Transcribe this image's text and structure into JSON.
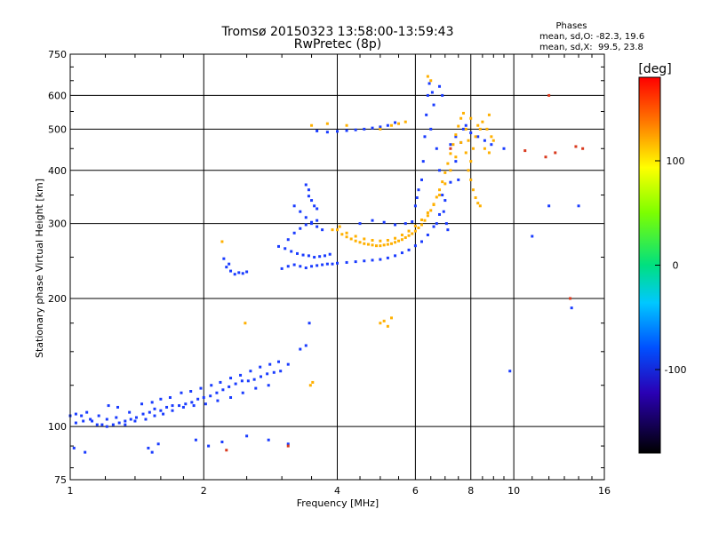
{
  "chart_data": {
    "type": "scatter",
    "title": "Tromsø 20150323 13:58:00-13:59:43",
    "subtitle": "RwPretec (8p)",
    "xlabel": "Frequency [MHz]",
    "ylabel": "Stationary phase Virtual Height [km]",
    "x_scale": "log",
    "y_scale": "log",
    "xlim": [
      1,
      16
    ],
    "ylim": [
      75,
      750
    ],
    "x_ticks": [
      1,
      2,
      4,
      6,
      8,
      10,
      16
    ],
    "y_ticks": [
      75,
      100,
      200,
      300,
      400,
      500,
      600,
      750
    ],
    "grid": true,
    "phase_stats": {
      "heading": "Phases",
      "line1": "mean, sd,O: -82.3, 19.6",
      "line2": "mean, sd,X:  99.5, 23.8"
    },
    "colorbar": {
      "label": "[deg]",
      "ticks": [
        100,
        0,
        -100
      ],
      "range": [
        -180,
        180
      ]
    },
    "series": [
      {
        "points": [
          [
            1.0,
            106
          ],
          [
            1.03,
            107
          ],
          [
            1.06,
            106
          ],
          [
            1.09,
            108
          ],
          [
            1.12,
            103
          ],
          [
            1.15,
            101
          ],
          [
            1.18,
            101
          ],
          [
            1.21,
            100
          ],
          [
            1.25,
            101
          ],
          [
            1.29,
            102
          ],
          [
            1.33,
            103
          ],
          [
            1.37,
            104
          ],
          [
            1.41,
            105
          ],
          [
            1.46,
            107
          ],
          [
            1.51,
            108
          ],
          [
            1.55,
            110
          ],
          [
            1.6,
            109
          ],
          [
            1.65,
            111
          ],
          [
            1.7,
            112
          ],
          [
            1.76,
            112
          ],
          [
            1.82,
            113
          ],
          [
            1.88,
            114
          ],
          [
            1.94,
            116
          ],
          [
            2.0,
            117
          ],
          [
            2.07,
            118
          ],
          [
            2.14,
            120
          ],
          [
            2.21,
            122
          ],
          [
            2.28,
            124
          ],
          [
            2.36,
            126
          ],
          [
            2.44,
            128
          ],
          [
            2.52,
            128
          ],
          [
            2.6,
            129
          ],
          [
            2.69,
            131
          ],
          [
            2.78,
            133
          ],
          [
            2.88,
            134
          ],
          [
            2.98,
            135
          ],
          [
            3.1,
            140
          ],
          [
            3.3,
            152
          ],
          [
            3.4,
            155
          ],
          [
            3.46,
            175
          ],
          [
            1.55,
            106
          ],
          [
            1.62,
            107
          ],
          [
            1.7,
            109
          ],
          [
            1.8,
            111
          ],
          [
            1.9,
            112
          ],
          [
            2.02,
            113
          ],
          [
            2.15,
            115
          ],
          [
            2.3,
            117
          ],
          [
            2.45,
            120
          ],
          [
            2.62,
            123
          ],
          [
            2.8,
            125
          ],
          [
            1.03,
            102
          ],
          [
            1.07,
            103
          ],
          [
            1.11,
            104
          ],
          [
            1.16,
            106
          ],
          [
            1.21,
            104
          ],
          [
            1.27,
            105
          ],
          [
            1.33,
            101
          ],
          [
            1.4,
            103
          ],
          [
            1.48,
            104
          ],
          [
            1.22,
            112
          ],
          [
            1.28,
            111
          ],
          [
            1.36,
            108
          ],
          [
            1.45,
            113
          ],
          [
            1.53,
            114
          ],
          [
            1.6,
            116
          ],
          [
            1.68,
            117
          ],
          [
            1.78,
            120
          ],
          [
            1.87,
            121
          ],
          [
            1.97,
            123
          ],
          [
            2.08,
            125
          ],
          [
            2.18,
            127
          ],
          [
            2.3,
            130
          ],
          [
            2.42,
            132
          ],
          [
            2.55,
            135
          ],
          [
            2.68,
            138
          ],
          [
            2.82,
            140
          ],
          [
            2.95,
            142
          ],
          [
            1.02,
            89
          ],
          [
            1.08,
            87
          ],
          [
            1.5,
            89
          ],
          [
            1.53,
            87
          ],
          [
            1.58,
            91
          ],
          [
            1.92,
            93
          ],
          [
            2.05,
            90
          ],
          [
            2.2,
            92
          ],
          [
            2.5,
            95
          ],
          [
            2.8,
            93
          ],
          [
            3.1,
            91
          ],
          [
            2.35,
            228
          ],
          [
            2.3,
            232
          ],
          [
            2.4,
            230
          ],
          [
            2.45,
            229
          ],
          [
            2.5,
            231
          ],
          [
            2.25,
            237
          ],
          [
            2.28,
            241
          ],
          [
            2.22,
            248
          ],
          [
            3.0,
            235
          ],
          [
            3.1,
            238
          ],
          [
            3.2,
            240
          ],
          [
            3.3,
            238
          ],
          [
            3.4,
            236
          ],
          [
            3.5,
            238
          ],
          [
            3.6,
            239
          ],
          [
            3.7,
            240
          ],
          [
            3.8,
            241
          ],
          [
            3.9,
            241
          ],
          [
            4.0,
            242
          ],
          [
            4.2,
            243
          ],
          [
            4.4,
            244
          ],
          [
            4.6,
            245
          ],
          [
            4.8,
            246
          ],
          [
            5.0,
            247
          ],
          [
            5.2,
            249
          ],
          [
            5.4,
            252
          ],
          [
            5.6,
            256
          ],
          [
            5.8,
            260
          ],
          [
            6.0,
            266
          ],
          [
            6.2,
            272
          ],
          [
            6.4,
            282
          ],
          [
            6.6,
            295
          ],
          [
            6.8,
            315
          ],
          [
            7.0,
            340
          ],
          [
            7.2,
            375
          ],
          [
            7.4,
            420
          ],
          [
            7.6,
            465
          ],
          [
            7.8,
            510
          ],
          [
            2.95,
            265
          ],
          [
            3.05,
            262
          ],
          [
            3.15,
            258
          ],
          [
            3.25,
            255
          ],
          [
            3.35,
            253
          ],
          [
            3.45,
            252
          ],
          [
            3.55,
            250
          ],
          [
            3.65,
            251
          ],
          [
            3.75,
            252
          ],
          [
            3.85,
            254
          ],
          [
            3.2,
            330
          ],
          [
            3.3,
            320
          ],
          [
            3.4,
            310
          ],
          [
            3.5,
            300
          ],
          [
            3.6,
            295
          ],
          [
            3.7,
            290
          ],
          [
            3.45,
            348
          ],
          [
            3.5,
            340
          ],
          [
            3.55,
            330
          ],
          [
            3.6,
            325
          ],
          [
            3.1,
            275
          ],
          [
            3.2,
            285
          ],
          [
            3.3,
            292
          ],
          [
            3.4,
            298
          ],
          [
            3.5,
            302
          ],
          [
            3.6,
            305
          ],
          [
            3.4,
            370
          ],
          [
            3.45,
            360
          ],
          [
            4.5,
            300
          ],
          [
            4.8,
            305
          ],
          [
            5.1,
            302
          ],
          [
            5.4,
            298
          ],
          [
            5.7,
            300
          ],
          [
            5.9,
            303
          ],
          [
            6.1,
            360
          ],
          [
            6.2,
            380
          ],
          [
            6.25,
            420
          ],
          [
            6.3,
            480
          ],
          [
            6.35,
            540
          ],
          [
            6.4,
            600
          ],
          [
            6.45,
            640
          ],
          [
            6.55,
            610
          ],
          [
            6.6,
            570
          ],
          [
            6.5,
            500
          ],
          [
            6.7,
            450
          ],
          [
            6.8,
            400
          ],
          [
            6.9,
            350
          ],
          [
            6.95,
            320
          ],
          [
            7.05,
            300
          ],
          [
            7.1,
            290
          ],
          [
            6.0,
            330
          ],
          [
            6.05,
            345
          ],
          [
            3.6,
            495
          ],
          [
            3.8,
            492
          ],
          [
            4.0,
            494
          ],
          [
            4.2,
            496
          ],
          [
            4.4,
            498
          ],
          [
            4.6,
            500
          ],
          [
            4.8,
            503
          ],
          [
            5.0,
            506
          ],
          [
            5.2,
            510
          ],
          [
            5.4,
            518
          ],
          [
            7.2,
            460
          ],
          [
            7.4,
            480
          ],
          [
            7.7,
            500
          ],
          [
            8.0,
            490
          ],
          [
            8.3,
            480
          ],
          [
            8.6,
            470
          ],
          [
            8.9,
            460
          ],
          [
            6.8,
            630
          ],
          [
            6.9,
            600
          ],
          [
            6.7,
            300
          ],
          [
            7.5,
            380
          ],
          [
            9.5,
            450
          ],
          [
            13.5,
            190
          ],
          [
            11.0,
            280
          ],
          [
            12.0,
            330
          ],
          [
            14.0,
            330
          ],
          [
            9.8,
            135
          ]
        ]
      },
      {
        "points": [
          [
            4.0,
            290
          ],
          [
            4.1,
            283
          ],
          [
            4.2,
            279
          ],
          [
            4.3,
            276
          ],
          [
            4.4,
            273
          ],
          [
            4.5,
            271
          ],
          [
            4.6,
            269
          ],
          [
            4.7,
            268
          ],
          [
            4.8,
            267
          ],
          [
            4.9,
            266
          ],
          [
            5.0,
            266
          ],
          [
            5.1,
            267
          ],
          [
            5.2,
            268
          ],
          [
            5.3,
            269
          ],
          [
            5.4,
            271
          ],
          [
            5.5,
            273
          ],
          [
            5.6,
            275
          ],
          [
            5.7,
            278
          ],
          [
            5.8,
            281
          ],
          [
            5.9,
            284
          ],
          [
            6.0,
            288
          ],
          [
            6.1,
            293
          ],
          [
            6.2,
            298
          ],
          [
            6.3,
            305
          ],
          [
            6.4,
            313
          ],
          [
            6.5,
            322
          ],
          [
            6.6,
            333
          ],
          [
            6.7,
            346
          ],
          [
            6.8,
            360
          ],
          [
            6.9,
            376
          ],
          [
            7.0,
            395
          ],
          [
            7.1,
            415
          ],
          [
            7.2,
            438
          ],
          [
            7.3,
            460
          ],
          [
            7.4,
            485
          ],
          [
            7.5,
            508
          ],
          [
            7.6,
            530
          ],
          [
            7.7,
            545
          ],
          [
            4.2,
            285
          ],
          [
            4.4,
            280
          ],
          [
            4.6,
            276
          ],
          [
            4.8,
            274
          ],
          [
            5.0,
            273
          ],
          [
            5.2,
            274
          ],
          [
            5.4,
            277
          ],
          [
            5.6,
            282
          ],
          [
            5.8,
            288
          ],
          [
            6.0,
            296
          ],
          [
            6.2,
            306
          ],
          [
            6.4,
            318
          ],
          [
            6.6,
            332
          ],
          [
            6.8,
            350
          ],
          [
            7.0,
            372
          ],
          [
            7.2,
            400
          ],
          [
            7.4,
            430
          ],
          [
            7.6,
            465
          ],
          [
            7.8,
            500
          ],
          [
            8.0,
            530
          ],
          [
            7.9,
            400
          ],
          [
            8.0,
            380
          ],
          [
            8.1,
            360
          ],
          [
            8.2,
            345
          ],
          [
            8.3,
            335
          ],
          [
            8.4,
            330
          ],
          [
            8.0,
            420
          ],
          [
            8.1,
            450
          ],
          [
            8.2,
            480
          ],
          [
            8.3,
            510
          ],
          [
            8.5,
            520
          ],
          [
            8.7,
            500
          ],
          [
            8.9,
            480
          ],
          [
            9.0,
            470
          ],
          [
            8.6,
            450
          ],
          [
            8.8,
            440
          ],
          [
            7.8,
            440
          ],
          [
            7.9,
            470
          ],
          [
            5.0,
            500
          ],
          [
            5.3,
            510
          ],
          [
            5.5,
            515
          ],
          [
            5.7,
            520
          ],
          [
            3.5,
            510
          ],
          [
            3.8,
            515
          ],
          [
            4.2,
            510
          ],
          [
            5.0,
            175
          ],
          [
            5.1,
            177
          ],
          [
            5.3,
            180
          ],
          [
            5.2,
            172
          ],
          [
            3.48,
            125
          ],
          [
            3.52,
            127
          ],
          [
            2.48,
            175
          ],
          [
            6.4,
            665
          ],
          [
            6.5,
            650
          ],
          [
            3.9,
            290
          ],
          [
            4.05,
            295
          ],
          [
            2.2,
            272
          ],
          [
            8.4,
            500
          ],
          [
            8.8,
            540
          ]
        ]
      },
      {
        "points": [
          [
            2.25,
            88
          ],
          [
            3.1,
            90
          ],
          [
            7.2,
            450
          ],
          [
            10.6,
            445
          ],
          [
            12.0,
            600
          ],
          [
            13.8,
            455
          ],
          [
            13.4,
            200
          ],
          [
            12.4,
            440
          ],
          [
            11.8,
            430
          ],
          [
            14.3,
            450
          ]
        ]
      }
    ]
  },
  "palette": {
    "frame": "#000000",
    "grid": "#000000",
    "o_mode_color": "#1a3cff",
    "x_mode_color": "#ffb000",
    "misc_color": "#d93a1e"
  }
}
